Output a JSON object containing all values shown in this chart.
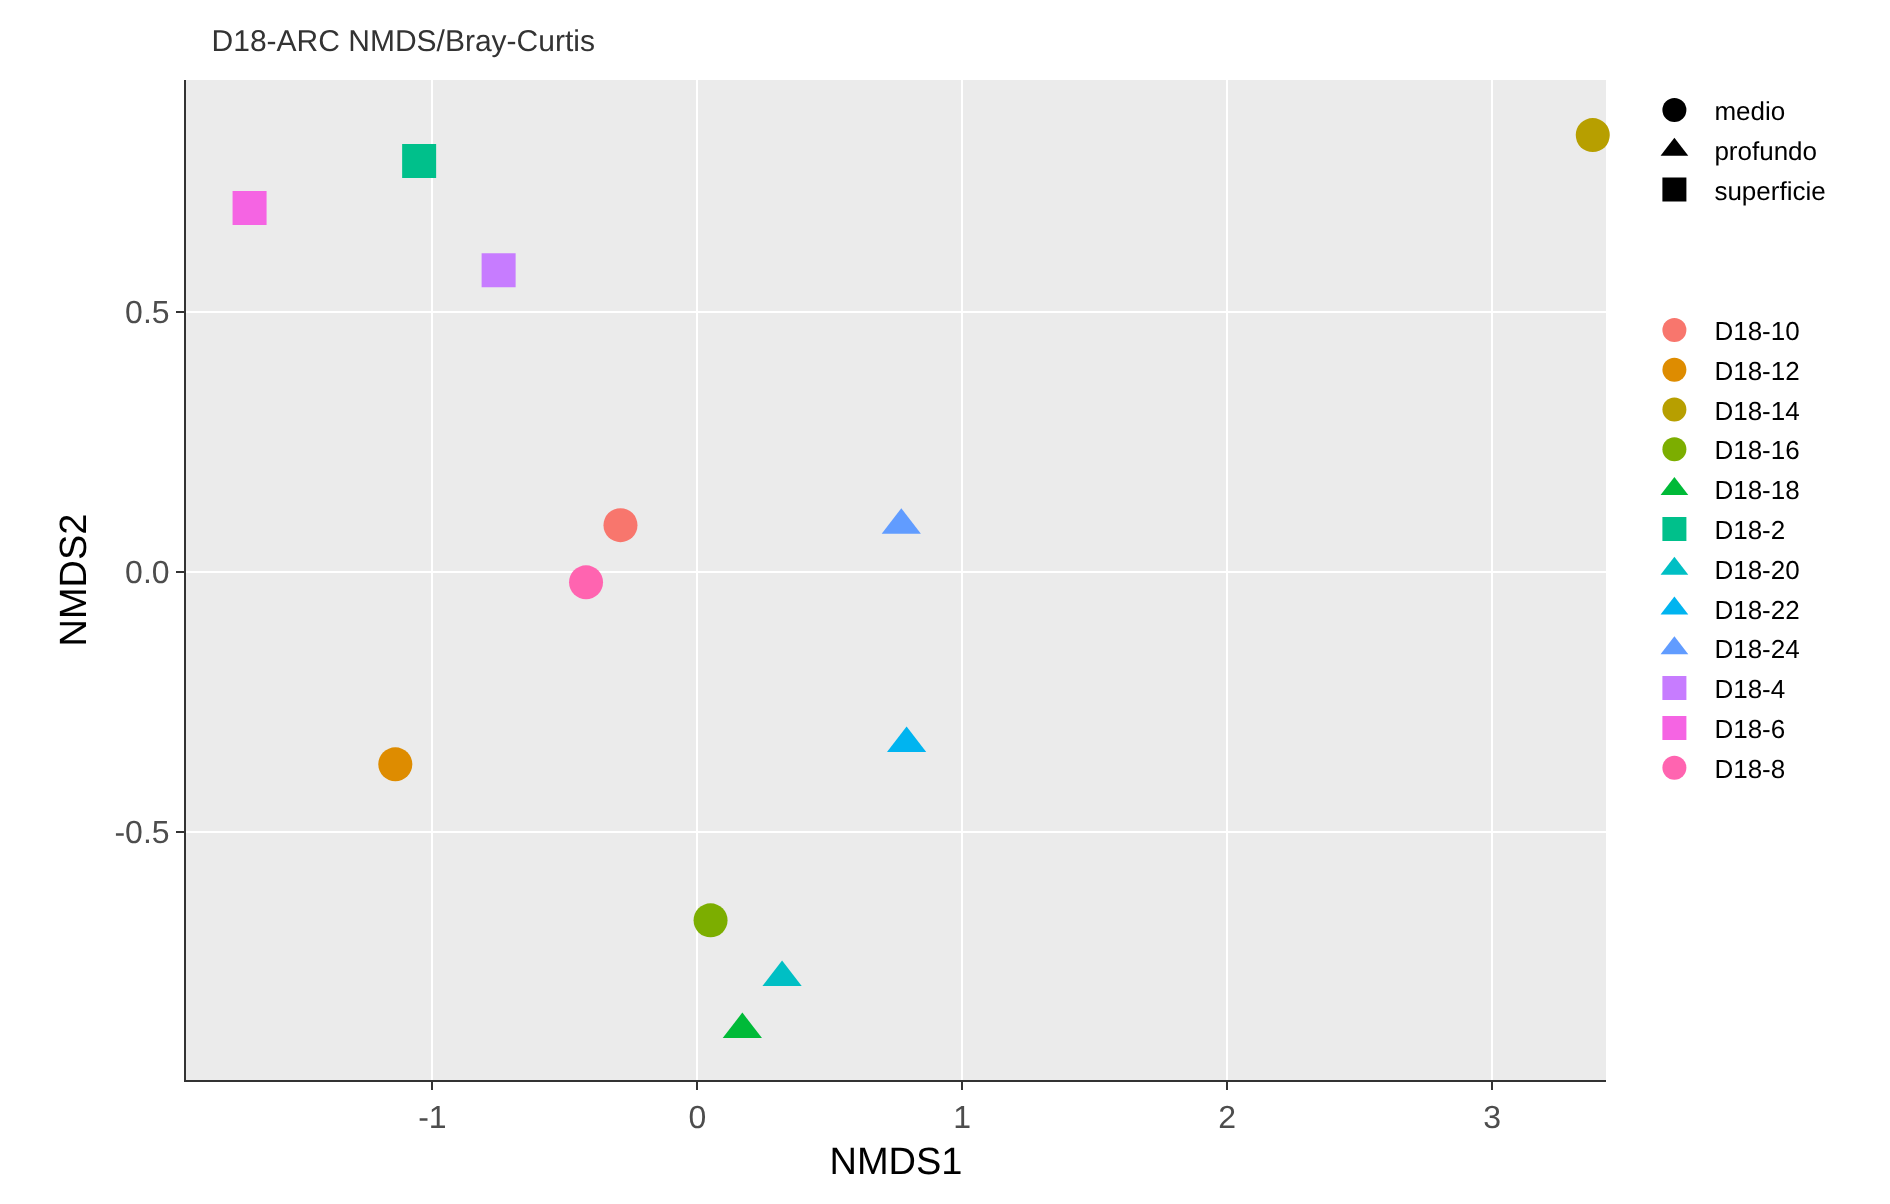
{
  "chart_data": {
    "type": "scatter",
    "title": "D18-ARC NMDS/Bray-Curtis",
    "xlabel": "NMDS1",
    "ylabel": "NMDS2",
    "xlim": [
      -1.93,
      3.43
    ],
    "xticks": [
      -1,
      0,
      1,
      2,
      3
    ],
    "ylim": [
      -0.977,
      0.946
    ],
    "yticks": [
      {
        "value": -0.5,
        "label": "-0.5"
      },
      {
        "value": 0,
        "label": "0.0"
      },
      {
        "value": 0.5,
        "label": "0.5"
      }
    ],
    "grid": true,
    "legend": "right",
    "series": [
      {
        "name": "medio",
        "marker": "circle",
        "color": "#000000",
        "x": [
          null
        ],
        "values": [
          null
        ]
      },
      {
        "name": "profundo",
        "marker": "triangle",
        "color": "#000000",
        "x": [
          null
        ],
        "values": [
          null
        ]
      },
      {
        "name": "superficie",
        "marker": "square",
        "color": "#000000",
        "x": [
          null
        ],
        "values": [
          null
        ]
      },
      {
        "name": "D18-10",
        "marker": "circle",
        "color": "#f8766d",
        "x": [
          -0.29
        ],
        "values": [
          0.09
        ]
      },
      {
        "name": "D18-12",
        "marker": "circle",
        "color": "#de8c00",
        "x": [
          -1.14
        ],
        "values": [
          -0.37
        ]
      },
      {
        "name": "D18-14",
        "marker": "circle",
        "color": "#b79f00",
        "x": [
          3.38
        ],
        "values": [
          0.84
        ]
      },
      {
        "name": "D18-16",
        "marker": "circle",
        "color": "#7cae00",
        "x": [
          0.05
        ],
        "values": [
          -0.67
        ]
      },
      {
        "name": "D18-18",
        "marker": "triangle",
        "color": "#00ba38",
        "x": [
          0.17
        ],
        "values": [
          -0.88
        ]
      },
      {
        "name": "D18-2",
        "marker": "square",
        "color": "#00c08b",
        "x": [
          -1.05
        ],
        "values": [
          0.79
        ]
      },
      {
        "name": "D18-20",
        "marker": "triangle",
        "color": "#00bfc4",
        "x": [
          0.32
        ],
        "values": [
          -0.78
        ]
      },
      {
        "name": "D18-22",
        "marker": "triangle",
        "color": "#00b4f0",
        "x": [
          0.79
        ],
        "values": [
          -0.33
        ]
      },
      {
        "name": "D18-24",
        "marker": "triangle",
        "color": "#619cff",
        "x": [
          0.77
        ],
        "values": [
          0.09
        ]
      },
      {
        "name": "D18-4",
        "marker": "square",
        "color": "#c77cff",
        "x": [
          -0.75
        ],
        "values": [
          0.58
        ]
      },
      {
        "name": "D18-6",
        "marker": "square",
        "color": "#f564e3",
        "x": [
          -1.69
        ],
        "values": [
          0.7
        ]
      },
      {
        "name": "D18-8",
        "marker": "circle",
        "color": "#ff64b0",
        "x": [
          -0.42
        ],
        "values": [
          -0.02
        ]
      }
    ]
  }
}
